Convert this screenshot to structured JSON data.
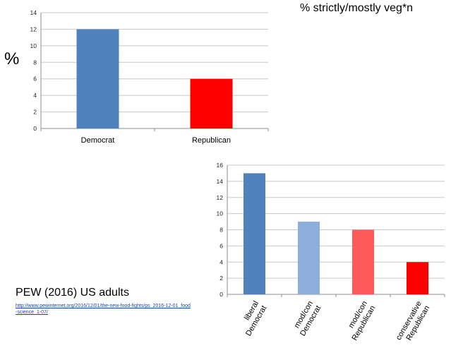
{
  "header": {
    "title": "% strictly/mostly veg*n",
    "y_unit": "%"
  },
  "source": {
    "title": "PEW (2016) US adults",
    "link": "http://www.pewinternet.org/2016/12/01/the-new-food-fights/ps_2016-12-01_food-science_1-07/"
  },
  "chart_data": [
    {
      "type": "bar",
      "categories": [
        "Democrat",
        "Republican"
      ],
      "values": [
        12,
        6
      ],
      "colors": [
        "#4f81bd",
        "#ff0000"
      ],
      "ylim": [
        0,
        14
      ],
      "yticks": [
        0,
        2,
        4,
        6,
        8,
        10,
        12,
        14
      ],
      "grid": true,
      "title": "",
      "xlabel": "",
      "ylabel": "%"
    },
    {
      "type": "bar",
      "categories": [
        [
          "liberal",
          "Democrat"
        ],
        [
          "mod/con",
          "Democrat"
        ],
        [
          "mod/con",
          "Republican"
        ],
        [
          "conservative",
          "Republican"
        ]
      ],
      "values": [
        15,
        9,
        8,
        4
      ],
      "colors": [
        "#4f81bd",
        "#8eaedb",
        "#ff5a5a",
        "#ff0000"
      ],
      "ylim": [
        0,
        16
      ],
      "yticks": [
        0,
        2,
        4,
        6,
        8,
        10,
        12,
        14,
        16
      ],
      "grid": true,
      "title": "",
      "xlabel": "",
      "ylabel": ""
    }
  ]
}
